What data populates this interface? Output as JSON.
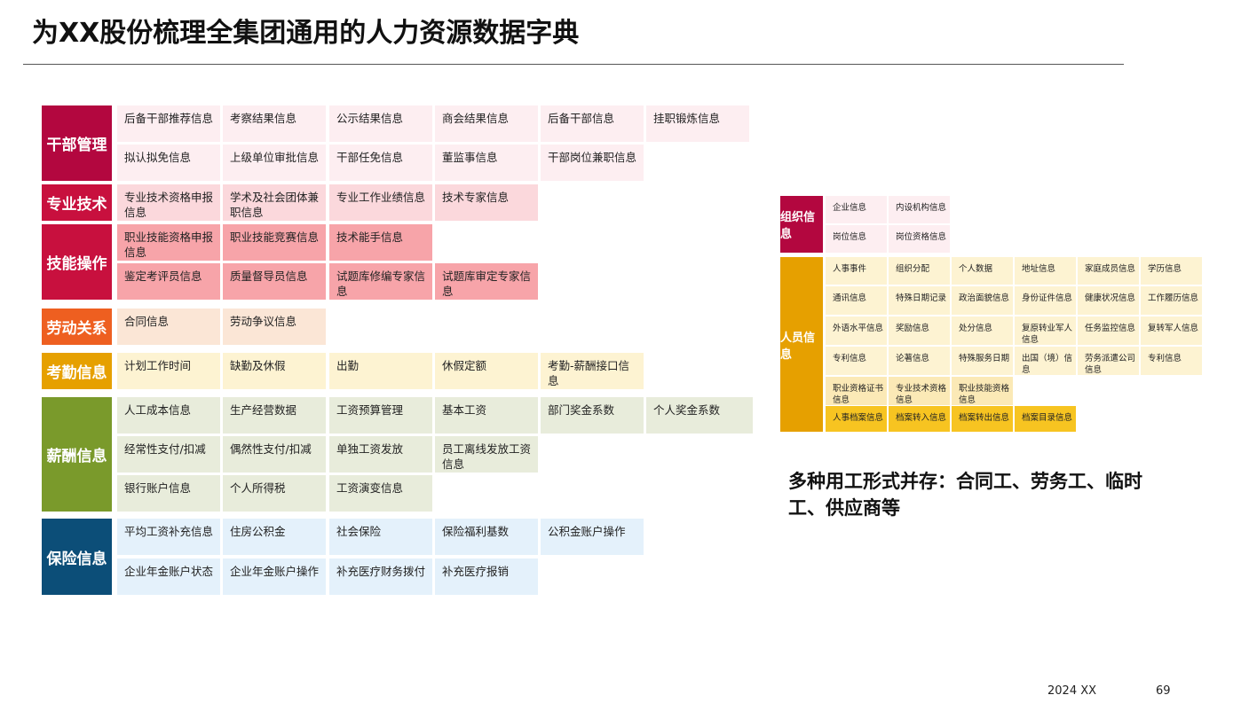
{
  "title": "为XX股份梳理全集团通用的人力资源数据字典",
  "colors": {
    "cadre": "#b3073f",
    "tech": "#c8103e",
    "skill": "#c8103e",
    "labor": "#ee5f20",
    "attendance": "#e6a000",
    "salary": "#7a9a2b",
    "insurance": "#0c4e78",
    "org": "#b3073f",
    "personnel": "#e6a000"
  },
  "categories": [
    {
      "id": "cadre",
      "label": "干部管理",
      "rows": [
        [
          "后备干部推荐信息",
          "考察结果信息",
          "公示结果信息",
          "商会结果信息",
          "后备干部信息",
          "挂职锻炼信息"
        ],
        [
          "拟认拟免信息",
          "上级单位审批信息",
          "干部任免信息",
          "董监事信息",
          "干部岗位兼职信息"
        ]
      ]
    },
    {
      "id": "tech",
      "label": "专业技术",
      "rows": [
        [
          "专业技术资格申报信息",
          "学术及社会团体兼职信息",
          "专业工作业绩信息",
          "技术专家信息"
        ]
      ]
    },
    {
      "id": "skill",
      "label": "技能操作",
      "rows": [
        [
          "职业技能资格申报信息",
          "职业技能竞赛信息",
          "技术能手信息"
        ],
        [
          "鉴定考评员信息",
          "质量督导员信息",
          "试题库修编专家信息",
          "试题库审定专家信息"
        ]
      ]
    },
    {
      "id": "labor",
      "label": "劳动关系",
      "rows": [
        [
          "合同信息",
          "劳动争议信息"
        ]
      ]
    },
    {
      "id": "attendance",
      "label": "考勤信息",
      "rows": [
        [
          "计划工作时间",
          "缺勤及休假",
          "出勤",
          "休假定额",
          "考勤-薪酬接口信息"
        ]
      ]
    },
    {
      "id": "salary",
      "label": "薪酬信息",
      "rows": [
        [
          "人工成本信息",
          "生产经营数据",
          "工资预算管理",
          "基本工资",
          "部门奖金系数",
          "个人奖金系数"
        ],
        [
          "经常性支付/扣减",
          "偶然性支付/扣减",
          "单独工资发放",
          "员工离线发放工资信息"
        ],
        [
          "银行账户信息",
          "个人所得税",
          "工资演变信息"
        ]
      ]
    },
    {
      "id": "insurance",
      "label": "保险信息",
      "rows": [
        [
          "平均工资补充信息",
          "住房公积金",
          "社会保险",
          "保险福利基数",
          "公积金账户操作"
        ],
        [
          "企业年金账户状态",
          "企业年金账户操作",
          "补充医疗财务拨付",
          "补充医疗报销"
        ]
      ]
    }
  ],
  "right_panel": {
    "org": {
      "label": "组织信息",
      "rows": [
        [
          "企业信息",
          "内设机构信息"
        ],
        [
          "岗位信息",
          "岗位资格信息"
        ]
      ]
    },
    "personnel": {
      "label": "人员信息",
      "rows": [
        [
          "人事事件",
          "组织分配",
          "个人数据",
          "地址信息",
          "家庭成员信息",
          "学历信息"
        ],
        [
          "通讯信息",
          "特殊日期记录",
          "政治面貌信息",
          "身份证件信息",
          "健康状况信息",
          "工作履历信息"
        ],
        [
          "外语水平信息",
          "奖励信息",
          "处分信息",
          "复原转业军人信息",
          "任务监控信息",
          "复转军人信息"
        ],
        [
          "专利信息",
          "论著信息",
          "特殊服务日期",
          "出国（境）信息",
          "劳务派遣公司信息",
          "专利信息"
        ],
        [
          "职业资格证书信息",
          "专业技术资格信息",
          "职业技能资格信息"
        ],
        [
          "人事档案信息",
          "档案转入信息",
          "档案转出信息",
          "档案目录信息"
        ]
      ]
    }
  },
  "note": "多种用工形式并存：合同工、劳务工、临时工、供应商等",
  "footer": {
    "date": "2024 XX",
    "page": "69"
  }
}
